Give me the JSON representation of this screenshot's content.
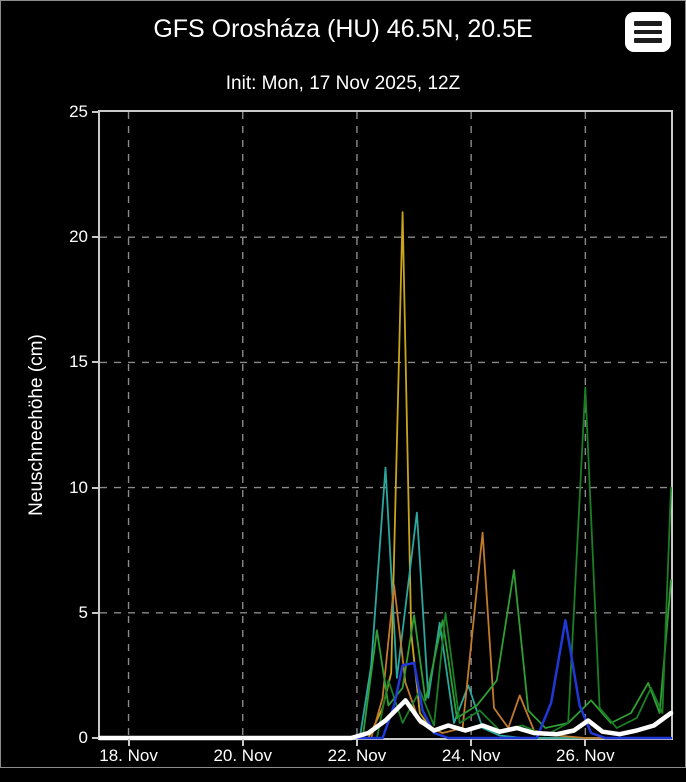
{
  "header": {
    "title": "GFS Orosháza (HU) 46.5N, 20.5E",
    "menu_icon": "hamburger-menu"
  },
  "subtitle": "Init: Mon, 17 Nov 2025, 12Z",
  "colors": {
    "background": "#000000",
    "frame": "#c9c9c9",
    "text": "#ffffff",
    "grid": "#8a8a8a"
  },
  "chart_data": {
    "type": "line",
    "title": "GFS Orosháza (HU) 46.5N, 20.5E",
    "subtitle": "Init: Mon, 17 Nov 2025, 12Z",
    "xlabel": "",
    "ylabel": "Neuschneehöhe (cm)",
    "x_unit": "day of November 2025",
    "xlim": [
      17.5,
      27.5
    ],
    "ylim": [
      0,
      25
    ],
    "yticks": [
      0,
      5,
      10,
      15,
      20,
      25
    ],
    "xticks": [
      {
        "value": 18,
        "label": "18. Nov"
      },
      {
        "value": 20,
        "label": "20. Nov"
      },
      {
        "value": 22,
        "label": "22. Nov"
      },
      {
        "value": 24,
        "label": "24. Nov"
      },
      {
        "value": 26,
        "label": "26. Nov"
      }
    ],
    "grid": {
      "on": true,
      "color": "#8a8a8a",
      "dash": "7 7"
    },
    "legend": "none",
    "series": [
      {
        "name": "member-gold",
        "color": "#c9a41c",
        "width": 1.8,
        "points": [
          [
            17.5,
            0
          ],
          [
            22.2,
            0
          ],
          [
            22.45,
            1.2
          ],
          [
            22.6,
            2.6
          ],
          [
            22.8,
            21.0
          ],
          [
            22.95,
            4.2
          ],
          [
            23.1,
            1.0
          ],
          [
            23.35,
            0.2
          ],
          [
            23.6,
            0
          ],
          [
            27.5,
            0
          ]
        ]
      },
      {
        "name": "member-teal",
        "color": "#2aa79e",
        "width": 1.8,
        "points": [
          [
            17.5,
            0
          ],
          [
            22.05,
            0
          ],
          [
            22.25,
            2.9
          ],
          [
            22.5,
            10.8
          ],
          [
            22.7,
            2.4
          ],
          [
            23.05,
            9.0
          ],
          [
            23.25,
            1.6
          ],
          [
            23.45,
            4.6
          ],
          [
            23.7,
            0.6
          ],
          [
            23.95,
            2.1
          ],
          [
            24.2,
            0.4
          ],
          [
            24.5,
            0.1
          ],
          [
            24.9,
            0
          ],
          [
            27.5,
            0
          ]
        ]
      },
      {
        "name": "member-orange",
        "color": "#c17a2b",
        "width": 1.8,
        "points": [
          [
            17.5,
            0
          ],
          [
            22.25,
            0
          ],
          [
            22.45,
            1.6
          ],
          [
            22.65,
            6.1
          ],
          [
            22.85,
            2.2
          ],
          [
            23.1,
            0.6
          ],
          [
            23.5,
            0.2
          ],
          [
            23.85,
            0.4
          ],
          [
            24.2,
            8.2
          ],
          [
            24.4,
            1.2
          ],
          [
            24.65,
            0.4
          ],
          [
            24.85,
            1.7
          ],
          [
            25.1,
            0.3
          ],
          [
            25.5,
            0.1
          ],
          [
            26.0,
            0
          ],
          [
            27.5,
            0
          ]
        ]
      },
      {
        "name": "member-green",
        "color": "#2f9e33",
        "width": 1.8,
        "points": [
          [
            17.5,
            0
          ],
          [
            22.1,
            0
          ],
          [
            22.35,
            4.3
          ],
          [
            22.55,
            1.3
          ],
          [
            22.8,
            2.0
          ],
          [
            23.0,
            4.9
          ],
          [
            23.2,
            1.5
          ],
          [
            23.5,
            4.7
          ],
          [
            23.75,
            0.8
          ],
          [
            24.1,
            1.3
          ],
          [
            24.45,
            2.3
          ],
          [
            24.75,
            6.7
          ],
          [
            25.0,
            1.1
          ],
          [
            25.3,
            0.4
          ],
          [
            25.7,
            0.6
          ],
          [
            26.1,
            1.5
          ],
          [
            26.45,
            0.6
          ],
          [
            26.8,
            1.0
          ],
          [
            27.1,
            2.2
          ],
          [
            27.3,
            1.0
          ],
          [
            27.5,
            6.3
          ]
        ]
      },
      {
        "name": "member-darkgreen",
        "color": "#1b7e24",
        "width": 1.8,
        "points": [
          [
            17.5,
            0
          ],
          [
            22.35,
            0
          ],
          [
            22.55,
            2.3
          ],
          [
            22.8,
            0.6
          ],
          [
            23.1,
            1.9
          ],
          [
            23.35,
            0.5
          ],
          [
            23.55,
            5.0
          ],
          [
            23.8,
            0.6
          ],
          [
            24.15,
            1.1
          ],
          [
            24.5,
            0.3
          ],
          [
            24.9,
            0.5
          ],
          [
            25.3,
            0.1
          ],
          [
            25.7,
            0.6
          ],
          [
            26.0,
            14.0
          ],
          [
            26.25,
            1.2
          ],
          [
            26.55,
            0.4
          ],
          [
            26.9,
            0.8
          ],
          [
            27.15,
            2.0
          ],
          [
            27.35,
            1.0
          ],
          [
            27.5,
            10.0
          ]
        ]
      },
      {
        "name": "member-blue",
        "color": "#2038d8",
        "width": 2.5,
        "points": [
          [
            17.5,
            0
          ],
          [
            22.45,
            0
          ],
          [
            22.65,
            1.3
          ],
          [
            22.8,
            2.9
          ],
          [
            23.0,
            3.0
          ],
          [
            23.15,
            1.1
          ],
          [
            23.35,
            0.2
          ],
          [
            23.6,
            0
          ],
          [
            25.15,
            0
          ],
          [
            25.4,
            1.4
          ],
          [
            25.65,
            4.7
          ],
          [
            25.9,
            1.3
          ],
          [
            26.1,
            0.2
          ],
          [
            26.35,
            0
          ],
          [
            27.5,
            0
          ]
        ]
      },
      {
        "name": "ensemble-mean-white",
        "color": "#ffffff",
        "width": 4.5,
        "points": [
          [
            17.5,
            0
          ],
          [
            21.9,
            0
          ],
          [
            22.2,
            0.2
          ],
          [
            22.5,
            0.7
          ],
          [
            22.85,
            1.5
          ],
          [
            23.1,
            0.7
          ],
          [
            23.35,
            0.3
          ],
          [
            23.6,
            0.5
          ],
          [
            23.9,
            0.3
          ],
          [
            24.2,
            0.5
          ],
          [
            24.5,
            0.25
          ],
          [
            24.8,
            0.4
          ],
          [
            25.1,
            0.2
          ],
          [
            25.5,
            0.15
          ],
          [
            25.8,
            0.3
          ],
          [
            26.05,
            0.7
          ],
          [
            26.3,
            0.25
          ],
          [
            26.6,
            0.15
          ],
          [
            26.9,
            0.3
          ],
          [
            27.2,
            0.5
          ],
          [
            27.5,
            1.0
          ]
        ]
      }
    ]
  }
}
